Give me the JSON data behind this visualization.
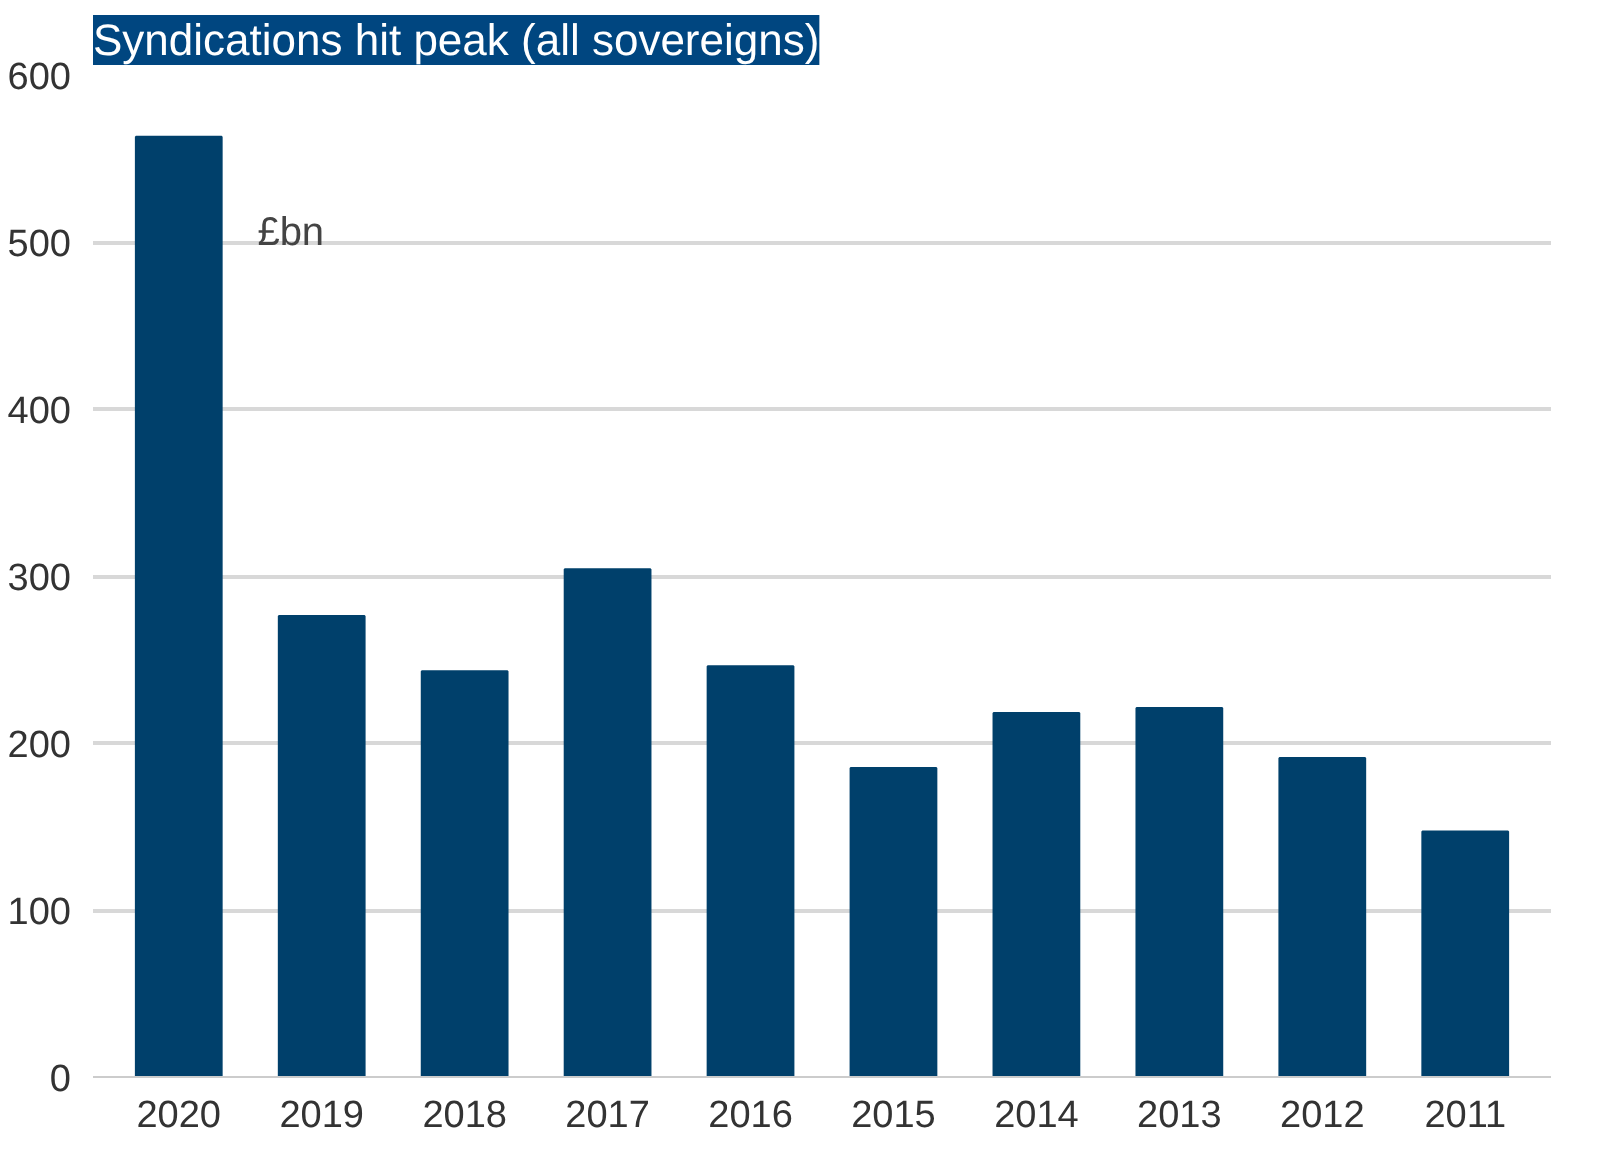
{
  "chart_data": {
    "type": "bar",
    "title": "Syndications hit peak (all sovereigns)",
    "categories": [
      "2020",
      "2019",
      "2018",
      "2017",
      "2016",
      "2015",
      "2014",
      "2013",
      "2012",
      "2011"
    ],
    "values": [
      563,
      276,
      243,
      304,
      246,
      185,
      218,
      221,
      191,
      147
    ],
    "color": "#00406b",
    "ylim": [
      0,
      600
    ],
    "yticks": [
      0,
      100,
      200,
      300,
      400,
      500,
      600
    ],
    "grid": "y",
    "annotations": [
      "£bn"
    ]
  }
}
